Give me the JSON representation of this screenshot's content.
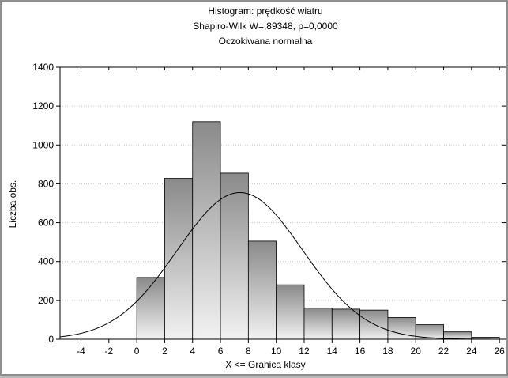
{
  "chart_data": {
    "type": "bar",
    "title": "Histogram: prędkość wiatru",
    "subtitle": "Shapiro-Wilk W=,89348, p=0,0000",
    "legend": "Oczokiwana normalna",
    "xlabel": "X <= Granica klasy",
    "ylabel": "Liczba obs.",
    "xlim": [
      -5.5,
      26.5
    ],
    "ylim": [
      0,
      1400
    ],
    "xticks": [
      -4,
      -2,
      0,
      2,
      4,
      6,
      8,
      10,
      12,
      14,
      16,
      18,
      20,
      22,
      24,
      26
    ],
    "yticks": [
      0,
      200,
      400,
      600,
      800,
      1000,
      1200,
      1400
    ],
    "grid": true,
    "bin_edges": [
      0,
      2,
      4,
      6,
      8,
      10,
      12,
      14,
      16,
      18,
      20,
      22,
      24,
      26
    ],
    "values": [
      318,
      828,
      1120,
      855,
      505,
      280,
      160,
      155,
      150,
      112,
      75,
      38,
      10
    ],
    "expected_normal": {
      "mean": 7.4,
      "sd": 4.5,
      "peak": 755
    }
  }
}
